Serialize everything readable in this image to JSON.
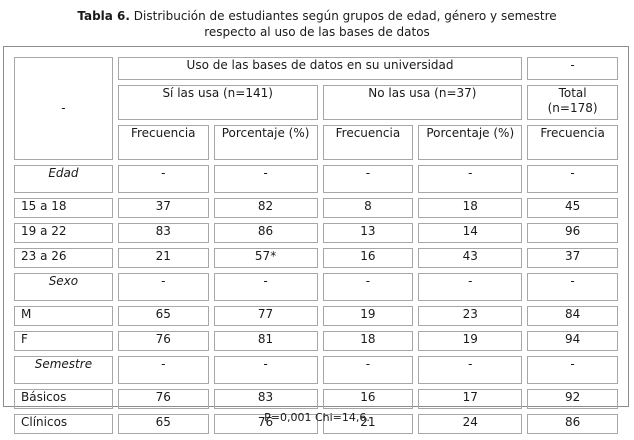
{
  "caption": {
    "label": "Tabla 6.",
    "line1": "Distribución de estudiantes según grupos de edad, género y semestre",
    "line2": "respecto al uso de las bases de datos"
  },
  "header": {
    "corner": "-",
    "group": "Uso de las bases de datos en su universidad",
    "group_right": "-",
    "si": "Sí las usa (n=141)",
    "no": "No las usa (n=37)",
    "total_line1": "Total",
    "total_line2": "(n=178)",
    "cols": [
      "Frecuencia",
      "Porcentaje (%)",
      "Frecuencia",
      "Porcentaje (%)",
      "Frecuencia"
    ]
  },
  "rows": [
    {
      "label": "Edad",
      "section": true,
      "cells": [
        "-",
        "-",
        "-",
        "-",
        "-"
      ]
    },
    {
      "label": "15 a 18",
      "section": false,
      "cells": [
        "37",
        "82",
        "8",
        "18",
        "45"
      ]
    },
    {
      "label": "19 a 22",
      "section": false,
      "cells": [
        "83",
        "86",
        "13",
        "14",
        "96"
      ]
    },
    {
      "label": "23 a 26",
      "section": false,
      "cells": [
        "21",
        "57*",
        "16",
        "43",
        "37"
      ]
    },
    {
      "label": "Sexo",
      "section": true,
      "cells": [
        "-",
        "-",
        "-",
        "-",
        "-"
      ]
    },
    {
      "label": "M",
      "section": false,
      "cells": [
        "65",
        "77",
        "19",
        "23",
        "84"
      ]
    },
    {
      "label": "F",
      "section": false,
      "cells": [
        "76",
        "81",
        "18",
        "19",
        "94"
      ]
    },
    {
      "label": "Semestre",
      "section": true,
      "cells": [
        "-",
        "-",
        "-",
        "-",
        "-"
      ]
    },
    {
      "label": "Básicos",
      "section": false,
      "cells": [
        "76",
        "83",
        "16",
        "17",
        "92"
      ]
    },
    {
      "label": "Clínicos",
      "section": false,
      "cells": [
        "65",
        "76",
        "21",
        "24",
        "86"
      ]
    }
  ],
  "footnote": "P=0,001 Chi=14,6."
}
